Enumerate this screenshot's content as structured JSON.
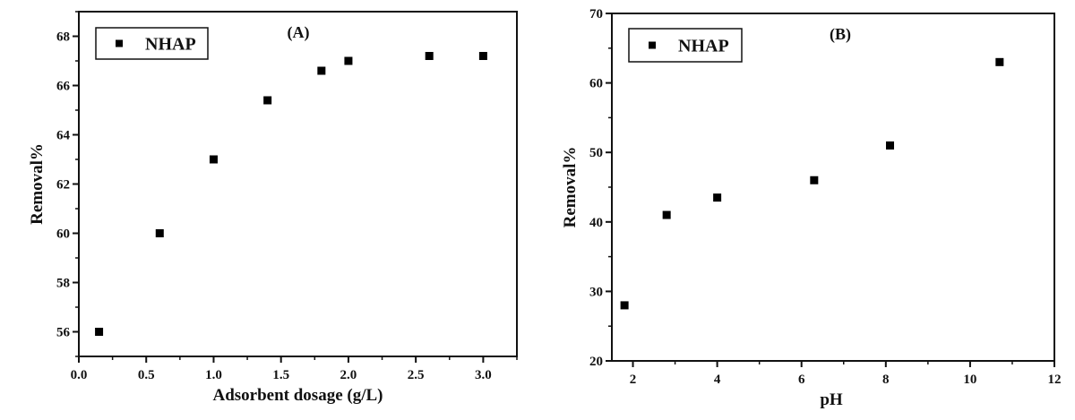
{
  "chart_data": [
    {
      "type": "scatter",
      "panel_label": "(A)",
      "xlabel": "Adsorbent dosage (g/L)",
      "ylabel": "Removal%",
      "xlim": [
        0,
        3.25
      ],
      "ylim": [
        55,
        69
      ],
      "xticks": [
        0.0,
        0.5,
        1.0,
        1.5,
        2.0,
        2.5,
        3.0
      ],
      "xtick_labels": [
        "0.0",
        "0.5",
        "1.0",
        "1.5",
        "2.0",
        "2.5",
        "3.0"
      ],
      "x_minor_step": 0.25,
      "yticks": [
        56,
        58,
        60,
        62,
        64,
        66,
        68
      ],
      "ytick_labels": [
        "56",
        "58",
        "60",
        "62",
        "64",
        "66",
        "68"
      ],
      "y_minor_step": 1,
      "grid": false,
      "legend": {
        "placement": "top-left",
        "entries": [
          "NHAP"
        ]
      },
      "series": [
        {
          "name": "NHAP",
          "color": "#000000",
          "marker": "square",
          "x": [
            0.15,
            0.6,
            1.0,
            1.4,
            1.8,
            2.0,
            2.6,
            3.0
          ],
          "y": [
            56.0,
            60.0,
            63.0,
            65.4,
            66.6,
            67.0,
            67.2,
            67.2
          ]
        }
      ]
    },
    {
      "type": "scatter",
      "panel_label": "(B)",
      "xlabel": "pH",
      "ylabel": "Removal%",
      "xlim": [
        1.5,
        12
      ],
      "ylim": [
        20,
        70
      ],
      "xticks": [
        2,
        4,
        6,
        8,
        10,
        12
      ],
      "xtick_labels": [
        "2",
        "4",
        "6",
        "8",
        "10",
        "12"
      ],
      "x_minor_step": 1,
      "yticks": [
        20,
        30,
        40,
        50,
        60,
        70
      ],
      "ytick_labels": [
        "20",
        "30",
        "40",
        "50",
        "60",
        "70"
      ],
      "y_minor_step": 5,
      "grid": false,
      "legend": {
        "placement": "top-left",
        "entries": [
          "NHAP"
        ]
      },
      "series": [
        {
          "name": "NHAP",
          "color": "#000000",
          "marker": "square",
          "x": [
            1.8,
            2.8,
            4.0,
            6.3,
            8.1,
            10.7
          ],
          "y": [
            28.0,
            41.0,
            43.5,
            46.0,
            51.0,
            63.0
          ]
        }
      ]
    }
  ]
}
